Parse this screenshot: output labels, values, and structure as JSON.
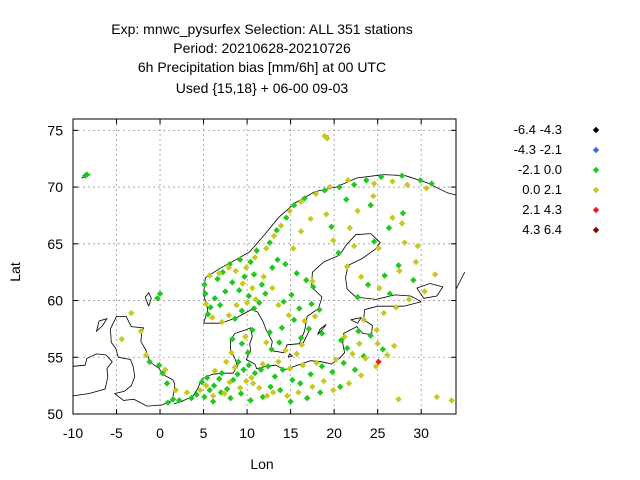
{
  "chart_data": {
    "type": "scatter",
    "title_lines": [
      "Exp: mnwc_pysurfex   Selection: ALL    351 stations",
      "Period: 20210628-20210726",
      "6h Precipitation bias [mm/6h] at  00 UTC",
      "Used {15,18} + 06-00 09-03"
    ],
    "xlabel": "Lon",
    "ylabel": "Lat",
    "xlim": [
      -10,
      34
    ],
    "ylim": [
      50,
      76
    ],
    "xticks": [
      "-10",
      "-5",
      "0",
      "5",
      "10",
      "15",
      "20",
      "25",
      "30"
    ],
    "yticks": [
      "50",
      "55",
      "60",
      "65",
      "70",
      "75"
    ],
    "grid": true,
    "legend_placement": "right",
    "legend": [
      {
        "label": "-6.4 -4.3",
        "color": "#000000"
      },
      {
        "label": "-4.3 -2.1",
        "color": "#3a6fd8"
      },
      {
        "label": "-2.1  0.0",
        "color": "#1ec81e"
      },
      {
        "label": " 0.0  2.1",
        "color": "#c8c81e"
      },
      {
        "label": " 2.1  4.3",
        "color": "#e61e1e"
      },
      {
        "label": " 4.3  6.4",
        "color": "#8b0000"
      }
    ],
    "series": [
      {
        "name": "-2.1  0.0",
        "color": "#1ec81e",
        "points": [
          [
            -8.6,
            71.0
          ],
          [
            -8.4,
            71.1
          ],
          [
            0.0,
            60.6
          ],
          [
            -0.3,
            60.2
          ],
          [
            -1.2,
            54.6
          ],
          [
            -0.1,
            54.3
          ],
          [
            0.3,
            53.6
          ],
          [
            0.8,
            52.7
          ],
          [
            1.5,
            51.3
          ],
          [
            0.9,
            51.0
          ],
          [
            2.2,
            51.2
          ],
          [
            3.6,
            51.4
          ],
          [
            4.2,
            51.7
          ],
          [
            5.1,
            51.5
          ],
          [
            5.7,
            52.1
          ],
          [
            4.8,
            52.8
          ],
          [
            6.2,
            52.5
          ],
          [
            6.8,
            53.1
          ],
          [
            5.4,
            53.2
          ],
          [
            7.1,
            53.6
          ],
          [
            7.7,
            52.2
          ],
          [
            8.4,
            53.0
          ],
          [
            8.9,
            53.5
          ],
          [
            9.6,
            53.9
          ],
          [
            10.2,
            54.3
          ],
          [
            9.0,
            54.6
          ],
          [
            10.9,
            53.6
          ],
          [
            11.6,
            53.9
          ],
          [
            12.4,
            54.2
          ],
          [
            13.2,
            53.3
          ],
          [
            14.1,
            53.9
          ],
          [
            12.7,
            52.4
          ],
          [
            13.8,
            52.1
          ],
          [
            15.2,
            53.0
          ],
          [
            16.1,
            52.7
          ],
          [
            17.3,
            53.5
          ],
          [
            18.6,
            54.2
          ],
          [
            19.8,
            53.7
          ],
          [
            21.1,
            54.5
          ],
          [
            22.4,
            53.9
          ],
          [
            20.7,
            52.4
          ],
          [
            18.4,
            51.9
          ],
          [
            16.9,
            51.4
          ],
          [
            15.0,
            51.1
          ],
          [
            11.8,
            51.5
          ],
          [
            10.4,
            51.2
          ],
          [
            9.3,
            51.8
          ],
          [
            8.1,
            51.4
          ],
          [
            7.0,
            51.9
          ],
          [
            6.1,
            51.1
          ],
          [
            5.5,
            58.8
          ],
          [
            5.8,
            59.4
          ],
          [
            6.3,
            60.2
          ],
          [
            5.2,
            60.6
          ],
          [
            5.1,
            61.4
          ],
          [
            6.6,
            61.9
          ],
          [
            7.2,
            62.5
          ],
          [
            8.0,
            63.2
          ],
          [
            9.2,
            63.6
          ],
          [
            10.4,
            63.4
          ],
          [
            11.1,
            64.4
          ],
          [
            12.6,
            65.1
          ],
          [
            13.4,
            66.2
          ],
          [
            14.5,
            67.3
          ],
          [
            15.4,
            68.4
          ],
          [
            16.6,
            69.0
          ],
          [
            18.9,
            69.7
          ],
          [
            20.6,
            70.0
          ],
          [
            22.3,
            70.2
          ],
          [
            23.7,
            70.6
          ],
          [
            25.4,
            70.9
          ],
          [
            27.8,
            71.0
          ],
          [
            29.9,
            70.6
          ],
          [
            31.2,
            70.3
          ],
          [
            8.6,
            58.4
          ],
          [
            9.4,
            59.1
          ],
          [
            10.8,
            59.3
          ],
          [
            11.4,
            59.8
          ],
          [
            10.2,
            60.4
          ],
          [
            9.1,
            60.9
          ],
          [
            8.3,
            61.6
          ],
          [
            7.5,
            60.8
          ],
          [
            6.9,
            59.6
          ],
          [
            12.1,
            60.6
          ],
          [
            11.7,
            61.4
          ],
          [
            10.8,
            62.3
          ],
          [
            9.7,
            62.1
          ],
          [
            12.9,
            62.9
          ],
          [
            13.5,
            63.6
          ],
          [
            14.4,
            63.2
          ],
          [
            15.7,
            62.4
          ],
          [
            16.8,
            61.8
          ],
          [
            17.6,
            61.2
          ],
          [
            15.1,
            60.5
          ],
          [
            14.2,
            59.9
          ],
          [
            16.0,
            59.3
          ],
          [
            17.4,
            59.7
          ],
          [
            18.3,
            59.2
          ],
          [
            15.4,
            58.3
          ],
          [
            14.0,
            57.6
          ],
          [
            12.6,
            57.2
          ],
          [
            13.7,
            56.3
          ],
          [
            16.2,
            56.7
          ],
          [
            17.1,
            57.5
          ],
          [
            18.6,
            57.1
          ],
          [
            12.8,
            55.7
          ],
          [
            10.1,
            55.4
          ],
          [
            9.4,
            56.2
          ],
          [
            8.3,
            56.6
          ],
          [
            10.6,
            57.4
          ],
          [
            22.7,
            60.3
          ],
          [
            23.9,
            61.4
          ],
          [
            25.8,
            62.2
          ],
          [
            27.4,
            63.1
          ],
          [
            24.6,
            65.2
          ],
          [
            26.3,
            66.4
          ],
          [
            27.9,
            67.7
          ],
          [
            24.2,
            68.4
          ],
          [
            21.4,
            68.9
          ],
          [
            19.7,
            66.5
          ],
          [
            20.5,
            64.2
          ],
          [
            26.4,
            60.6
          ],
          [
            29.1,
            61.8
          ],
          [
            23.4,
            55.1
          ],
          [
            25.6,
            55.7
          ],
          [
            21.5,
            55.8
          ],
          [
            24.2,
            56.9
          ],
          [
            22.8,
            57.3
          ],
          [
            20.8,
            56.5
          ]
        ]
      },
      {
        "name": " 0.0  2.1",
        "color": "#c8c81e",
        "points": [
          [
            -3.3,
            58.9
          ],
          [
            -2.2,
            57.3
          ],
          [
            -4.4,
            56.6
          ],
          [
            -1.6,
            55.2
          ],
          [
            0.6,
            53.9
          ],
          [
            1.8,
            52.1
          ],
          [
            3.1,
            51.9
          ],
          [
            4.6,
            52.1
          ],
          [
            5.3,
            52.5
          ],
          [
            6.1,
            51.6
          ],
          [
            7.4,
            51.8
          ],
          [
            8.0,
            52.8
          ],
          [
            9.2,
            52.3
          ],
          [
            10.7,
            52.7
          ],
          [
            11.4,
            52.3
          ],
          [
            12.3,
            51.6
          ],
          [
            13.0,
            51.9
          ],
          [
            14.6,
            51.6
          ],
          [
            15.9,
            51.9
          ],
          [
            17.5,
            52.4
          ],
          [
            18.8,
            52.9
          ],
          [
            19.9,
            52.1
          ],
          [
            21.7,
            52.7
          ],
          [
            23.1,
            53.4
          ],
          [
            24.8,
            54.2
          ],
          [
            26.1,
            55.2
          ],
          [
            26.9,
            56.0
          ],
          [
            25.0,
            56.2
          ],
          [
            23.6,
            54.9
          ],
          [
            22.1,
            55.3
          ],
          [
            20.2,
            54.8
          ],
          [
            18.0,
            54.5
          ],
          [
            16.4,
            54.3
          ],
          [
            14.9,
            54.0
          ],
          [
            13.6,
            54.6
          ],
          [
            11.8,
            54.4
          ],
          [
            10.5,
            53.2
          ],
          [
            9.9,
            52.9
          ],
          [
            8.6,
            54.1
          ],
          [
            7.6,
            54.6
          ],
          [
            6.3,
            53.8
          ],
          [
            27.4,
            51.3
          ],
          [
            31.8,
            51.5
          ],
          [
            33.5,
            51.2
          ],
          [
            5.3,
            59.7
          ],
          [
            6.0,
            58.5
          ],
          [
            7.1,
            58.1
          ],
          [
            7.9,
            58.7
          ],
          [
            8.8,
            59.6
          ],
          [
            10.0,
            59.8
          ],
          [
            11.0,
            60.1
          ],
          [
            10.6,
            61.1
          ],
          [
            9.5,
            61.5
          ],
          [
            8.7,
            62.6
          ],
          [
            7.9,
            62.9
          ],
          [
            6.8,
            62.4
          ],
          [
            5.7,
            62.2
          ],
          [
            9.9,
            62.9
          ],
          [
            10.9,
            63.8
          ],
          [
            12.2,
            64.6
          ],
          [
            13.1,
            65.7
          ],
          [
            13.9,
            66.6
          ],
          [
            14.9,
            67.9
          ],
          [
            16.2,
            68.7
          ],
          [
            17.9,
            69.4
          ],
          [
            19.5,
            70.0
          ],
          [
            21.6,
            70.6
          ],
          [
            24.6,
            70.3
          ],
          [
            26.7,
            70.5
          ],
          [
            28.4,
            70.2
          ],
          [
            30.6,
            69.9
          ],
          [
            18.9,
            74.5
          ],
          [
            19.2,
            74.3
          ],
          [
            11.9,
            62.1
          ],
          [
            12.9,
            61.1
          ],
          [
            13.6,
            59.6
          ],
          [
            14.8,
            58.7
          ],
          [
            16.6,
            58.2
          ],
          [
            17.8,
            58.6
          ],
          [
            16.3,
            56.1
          ],
          [
            12.2,
            56.3
          ],
          [
            9.8,
            56.8
          ],
          [
            8.2,
            55.4
          ],
          [
            14.4,
            55.6
          ],
          [
            15.7,
            55.3
          ],
          [
            21.5,
            63.0
          ],
          [
            22.3,
            64.8
          ],
          [
            23.1,
            62.1
          ],
          [
            25.2,
            61.1
          ],
          [
            27.5,
            62.6
          ],
          [
            29.4,
            63.4
          ],
          [
            28.1,
            65.1
          ],
          [
            26.7,
            67.3
          ],
          [
            25.1,
            64.6
          ],
          [
            19.9,
            65.3
          ],
          [
            21.8,
            66.4
          ],
          [
            17.5,
            61.7
          ],
          [
            15.3,
            64.6
          ],
          [
            16.2,
            66.1
          ],
          [
            17.3,
            67.2
          ],
          [
            19.1,
            67.6
          ],
          [
            22.7,
            67.9
          ],
          [
            24.5,
            69.2
          ],
          [
            21.2,
            56.8
          ],
          [
            22.9,
            56.2
          ],
          [
            24.9,
            57.4
          ],
          [
            23.4,
            58.3
          ],
          [
            25.7,
            58.9
          ],
          [
            27.1,
            59.4
          ],
          [
            28.6,
            60.1
          ],
          [
            30.4,
            60.8
          ],
          [
            31.6,
            62.3
          ],
          [
            29.6,
            64.8
          ],
          [
            27.8,
            66.8
          ]
        ]
      },
      {
        "name": " 2.1  4.3",
        "color": "#e61e1e",
        "points": [
          [
            25.1,
            54.6
          ]
        ]
      }
    ]
  }
}
